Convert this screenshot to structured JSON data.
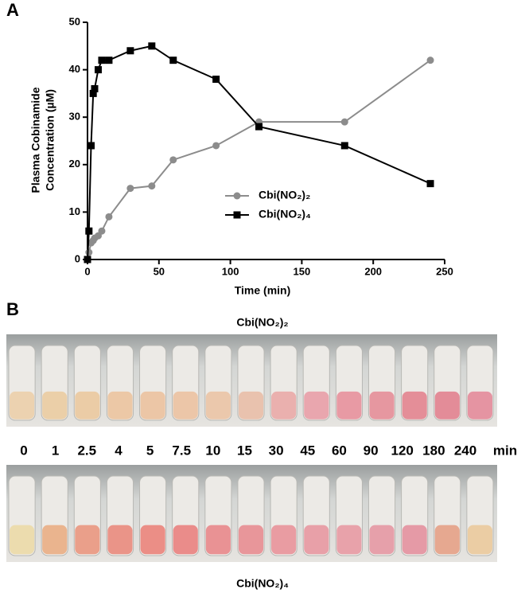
{
  "chart_data": {
    "type": "line",
    "xlabel": "Time (min)",
    "ylabel": [
      "Plasma Cobinamide",
      "Concentration (µM)"
    ],
    "x": [
      0,
      1,
      2.5,
      4,
      5,
      7.5,
      10,
      15,
      30,
      45,
      60,
      90,
      120,
      180,
      240
    ],
    "series": [
      {
        "name": "Cbi(NO₂)₂",
        "color": "#8c8c8c",
        "marker": "circle",
        "values": [
          0,
          1.5,
          3.5,
          4,
          4.5,
          5,
          6,
          9,
          15,
          15.5,
          21,
          24,
          29,
          29,
          42
        ]
      },
      {
        "name": "Cbi(NO₂)₄",
        "color": "#000000",
        "marker": "square",
        "values": [
          0,
          6,
          24,
          35,
          36,
          40,
          42,
          42,
          44,
          45,
          42,
          38,
          28,
          24,
          16
        ]
      }
    ],
    "xlim": [
      0,
      250
    ],
    "xticks": [
      0,
      50,
      100,
      150,
      200,
      250
    ],
    "ylim": [
      0,
      50
    ],
    "yticks": [
      0,
      10,
      20,
      30,
      40,
      50
    ],
    "grid": false
  },
  "panels": {
    "a": "A",
    "b": "B"
  },
  "photo": {
    "top_title": "Cbi(NO₂)₂",
    "times": [
      "0",
      "1",
      "2.5",
      "4",
      "5",
      "7.5",
      "10",
      "15",
      "30",
      "45",
      "60",
      "90",
      "120",
      "180",
      "240"
    ],
    "unit": "min",
    "bottom_title": "Cbi(NO₂)₄"
  }
}
